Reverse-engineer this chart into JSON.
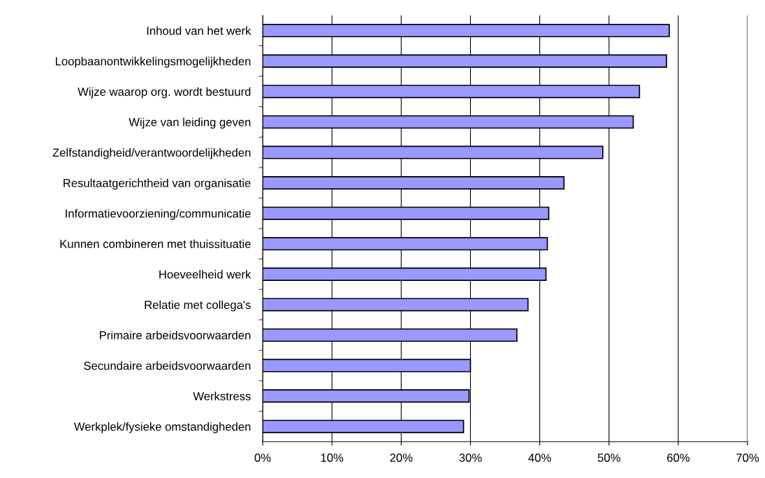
{
  "chart_data": {
    "type": "bar",
    "orientation": "horizontal",
    "categories": [
      "Inhoud van het werk",
      "Loopbaanontwikkelingsmogelijkheden",
      "Wijze waarop org. wordt bestuurd",
      "Wijze van leiding geven",
      "Zelfstandigheid/verantwoordelijkheden",
      "Resultaatgerichtheid van organisatie",
      "Informatievoorziening/communicatie",
      "Kunnen combineren met thuissituatie",
      "Hoeveelheid werk",
      "Relatie met collega's",
      "Primaire arbeidsvoorwaarden",
      "Secundaire arbeidsvoorwaarden",
      "Werkstress",
      "Werkplek/fysieke omstandigheden"
    ],
    "values": [
      58.7,
      58.3,
      54.4,
      53.5,
      49.1,
      43.5,
      41.3,
      41.1,
      40.9,
      38.3,
      36.7,
      30.0,
      29.8,
      29.0
    ],
    "color": "#9999ff",
    "xlim": [
      0,
      70
    ],
    "xticks": [
      {
        "value": 0,
        "label": "0%"
      },
      {
        "value": 10,
        "label": "10%"
      },
      {
        "value": 20,
        "label": "20%"
      },
      {
        "value": 30,
        "label": "30%"
      },
      {
        "value": 40,
        "label": "40%"
      },
      {
        "value": 50,
        "label": "50%"
      },
      {
        "value": 60,
        "label": "60%"
      },
      {
        "value": 70,
        "label": "70%"
      }
    ],
    "grid": "x"
  }
}
